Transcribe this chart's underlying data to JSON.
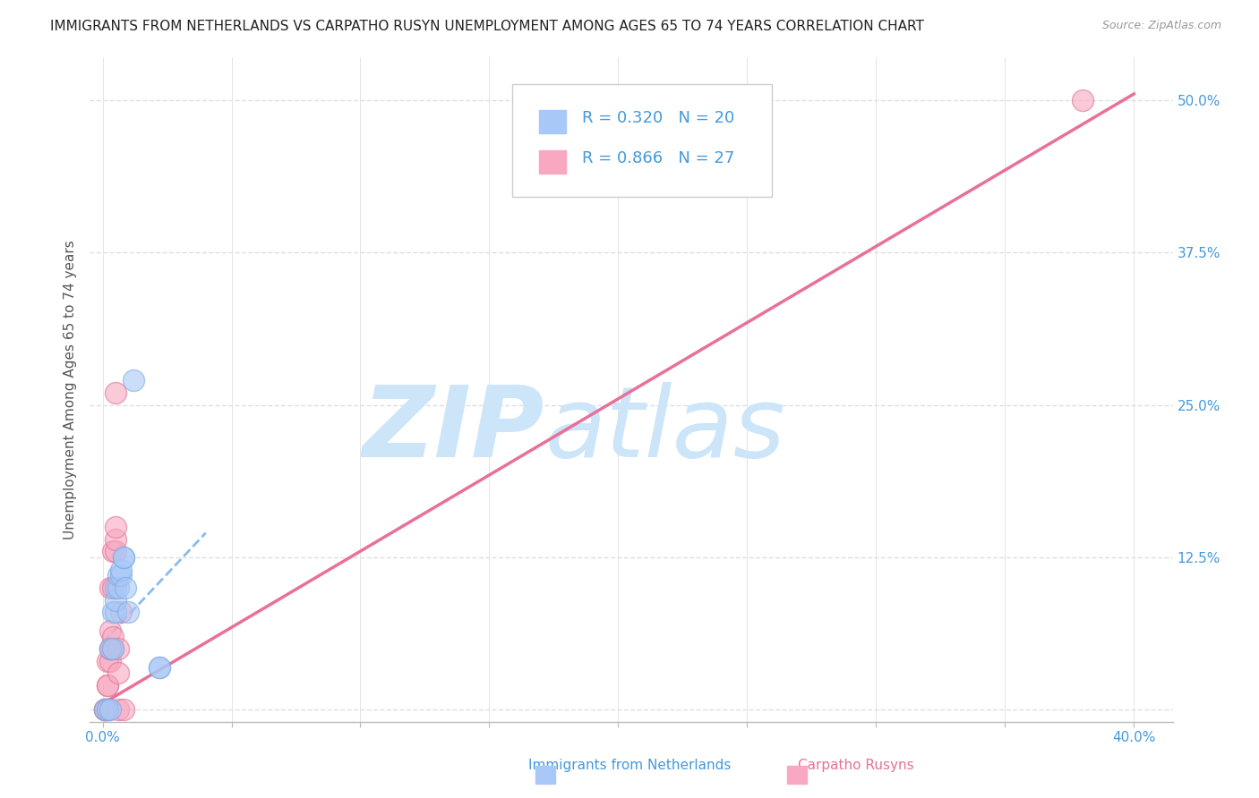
{
  "title": "IMMIGRANTS FROM NETHERLANDS VS CARPATHO RUSYN UNEMPLOYMENT AMONG AGES 65 TO 74 YEARS CORRELATION CHART",
  "source": "Source: ZipAtlas.com",
  "ylabel": "Unemployment Among Ages 65 to 74 years",
  "xlim": [
    -0.005,
    0.415
  ],
  "ylim": [
    -0.01,
    0.535
  ],
  "xticks": [
    0.0,
    0.05,
    0.1,
    0.15,
    0.2,
    0.25,
    0.3,
    0.35,
    0.4
  ],
  "xticklabels_show": {
    "0.0": "0.0%",
    "0.40": "40.0%"
  },
  "yticks": [
    0.0,
    0.125,
    0.25,
    0.375,
    0.5
  ],
  "yticklabels": [
    "",
    "12.5%",
    "25.0%",
    "37.5%",
    "50.0%"
  ],
  "series1_label": "Immigrants from Netherlands",
  "series1_color": "#a8c8f8",
  "series1_border_color": "#7aaae0",
  "series1_R": 0.32,
  "series1_N": 20,
  "series1_x": [
    0.001,
    0.002,
    0.003,
    0.003,
    0.004,
    0.004,
    0.005,
    0.005,
    0.005,
    0.006,
    0.006,
    0.007,
    0.007,
    0.008,
    0.008,
    0.009,
    0.01,
    0.012,
    0.022,
    0.022
  ],
  "series1_y": [
    0.0,
    0.0,
    0.0,
    0.05,
    0.05,
    0.08,
    0.08,
    0.09,
    0.1,
    0.1,
    0.11,
    0.11,
    0.115,
    0.125,
    0.125,
    0.1,
    0.08,
    0.27,
    0.035,
    0.035
  ],
  "series1_trend_x": [
    0.0,
    0.04
  ],
  "series1_trend_y": [
    0.055,
    0.145
  ],
  "series2_label": "Carpatho Rusyns",
  "series2_color": "#f8a8c0",
  "series2_border_color": "#e07090",
  "series2_R": 0.866,
  "series2_N": 27,
  "series2_x": [
    0.001,
    0.001,
    0.001,
    0.002,
    0.002,
    0.002,
    0.002,
    0.002,
    0.003,
    0.003,
    0.003,
    0.003,
    0.003,
    0.004,
    0.004,
    0.004,
    0.004,
    0.005,
    0.005,
    0.005,
    0.005,
    0.006,
    0.006,
    0.006,
    0.007,
    0.008,
    0.38
  ],
  "series2_y": [
    0.0,
    0.0,
    0.0,
    0.0,
    0.0,
    0.02,
    0.02,
    0.04,
    0.04,
    0.05,
    0.05,
    0.065,
    0.1,
    0.05,
    0.06,
    0.1,
    0.13,
    0.13,
    0.14,
    0.15,
    0.26,
    0.0,
    0.03,
    0.05,
    0.08,
    0.0,
    0.5
  ],
  "series2_trend_x": [
    0.0,
    0.4
  ],
  "series2_trend_y": [
    0.005,
    0.505
  ],
  "watermark_zip": "ZIP",
  "watermark_atlas": "atlas",
  "watermark_color": "#cce5f8",
  "legend_text_color": "#4499dd",
  "tick_label_color": "#4499dd",
  "axis_label_color": "#555555",
  "background_color": "#ffffff",
  "grid_color": "#e0e0e0",
  "title_fontsize": 11,
  "axis_label_fontsize": 11,
  "tick_fontsize": 11,
  "legend_fontsize": 13,
  "source_fontsize": 9
}
